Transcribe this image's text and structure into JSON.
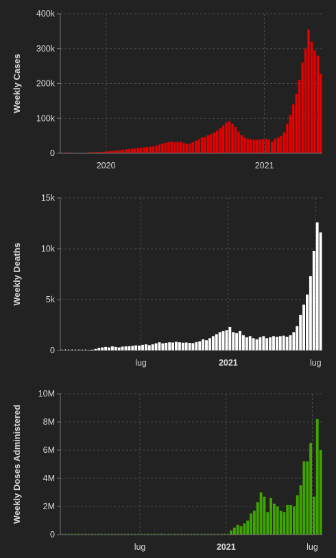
{
  "charts": [
    {
      "type": "bar",
      "ylabel": "Weekly Cases",
      "color": "#e60000",
      "ylim": [
        0,
        400000
      ],
      "yticks": [
        {
          "value": 0,
          "label": "0"
        },
        {
          "value": 100000,
          "label": "100k"
        },
        {
          "value": 200000,
          "label": "200k"
        },
        {
          "value": 300000,
          "label": "300k"
        },
        {
          "value": 400000,
          "label": "400k"
        }
      ],
      "xticks": [
        {
          "index": 15,
          "label": "2020",
          "bold": false
        },
        {
          "index": 67,
          "label": "2021",
          "bold": false
        }
      ],
      "values": [
        0,
        0,
        0,
        0,
        100,
        300,
        500,
        700,
        1500,
        2500,
        3000,
        3200,
        3500,
        4000,
        4500,
        5000,
        6000,
        7000,
        8000,
        9000,
        10000,
        11000,
        12000,
        13000,
        14000,
        15000,
        16000,
        17000,
        18000,
        19000,
        20000,
        22000,
        25000,
        28000,
        30000,
        32000,
        33000,
        31000,
        32000,
        33000,
        30000,
        27000,
        28000,
        32000,
        36000,
        40000,
        45000,
        48000,
        52000,
        55000,
        60000,
        65000,
        72000,
        80000,
        88000,
        92000,
        85000,
        75000,
        62000,
        52000,
        45000,
        42000,
        40000,
        39000,
        38000,
        40000,
        41000,
        41000,
        40000,
        33000,
        42000,
        45000,
        50000,
        60000,
        85000,
        110000,
        140000,
        170000,
        210000,
        260000,
        300000,
        355000,
        320000,
        295000,
        280000,
        228000
      ]
    },
    {
      "type": "bar",
      "ylabel": "Weekly Deaths",
      "color": "#ffffff",
      "ylim": [
        0,
        15000
      ],
      "yticks": [
        {
          "value": 0,
          "label": "0"
        },
        {
          "value": 5000,
          "label": "5k"
        },
        {
          "value": 10000,
          "label": "10k"
        },
        {
          "value": 15000,
          "label": "15k"
        }
      ],
      "xticks": [
        {
          "index": 24,
          "label": "lug",
          "bold": false
        },
        {
          "index": 50,
          "label": "2021",
          "bold": true
        },
        {
          "index": 76,
          "label": "lug",
          "bold": false
        }
      ],
      "values": [
        0,
        0,
        0,
        0,
        0,
        0,
        0,
        0,
        50,
        80,
        150,
        250,
        300,
        350,
        300,
        400,
        350,
        300,
        380,
        400,
        420,
        450,
        500,
        480,
        550,
        600,
        520,
        600,
        700,
        800,
        700,
        750,
        800,
        780,
        850,
        800,
        760,
        780,
        740,
        720,
        820,
        900,
        1100,
        1000,
        1200,
        1400,
        1600,
        1800,
        1900,
        2000,
        2300,
        1800,
        1700,
        1900,
        1500,
        1300,
        1400,
        1200,
        1100,
        1300,
        1400,
        1200,
        1300,
        1400,
        1350,
        1400,
        1450,
        1350,
        1500,
        1800,
        2400,
        3500,
        4500,
        5500,
        7300,
        9800,
        12600,
        11600
      ]
    },
    {
      "type": "bar",
      "ylabel": "Weekly Doses Administered",
      "color": "#3fa600",
      "ylim": [
        0,
        10000000
      ],
      "yticks": [
        {
          "value": 0,
          "label": "0"
        },
        {
          "value": 2000000,
          "label": "2M"
        },
        {
          "value": 4000000,
          "label": "4M"
        },
        {
          "value": 6000000,
          "label": "6M"
        },
        {
          "value": 8000000,
          "label": "8M"
        },
        {
          "value": 10000000,
          "label": "10M"
        }
      ],
      "xticks": [
        {
          "index": 24,
          "label": "lug",
          "bold": false
        },
        {
          "index": 50,
          "label": "2021",
          "bold": true
        },
        {
          "index": 76,
          "label": "lug",
          "bold": false
        }
      ],
      "values": [
        0,
        0,
        0,
        0,
        0,
        0,
        0,
        0,
        0,
        0,
        0,
        0,
        0,
        0,
        0,
        0,
        0,
        0,
        0,
        0,
        0,
        0,
        0,
        0,
        0,
        0,
        0,
        0,
        0,
        0,
        0,
        0,
        0,
        0,
        0,
        0,
        0,
        0,
        0,
        0,
        0,
        0,
        0,
        0,
        0,
        0,
        0,
        0,
        0,
        0,
        0,
        300000,
        500000,
        700000,
        600000,
        800000,
        1000000,
        1500000,
        1700000,
        2300000,
        3000000,
        2700000,
        1600000,
        2600000,
        2200000,
        2000000,
        1700000,
        1600000,
        2100000,
        2100000,
        2000000,
        2800000,
        3500000,
        5200000,
        5200000,
        6500000,
        2700000,
        8200000,
        6000000
      ]
    }
  ]
}
